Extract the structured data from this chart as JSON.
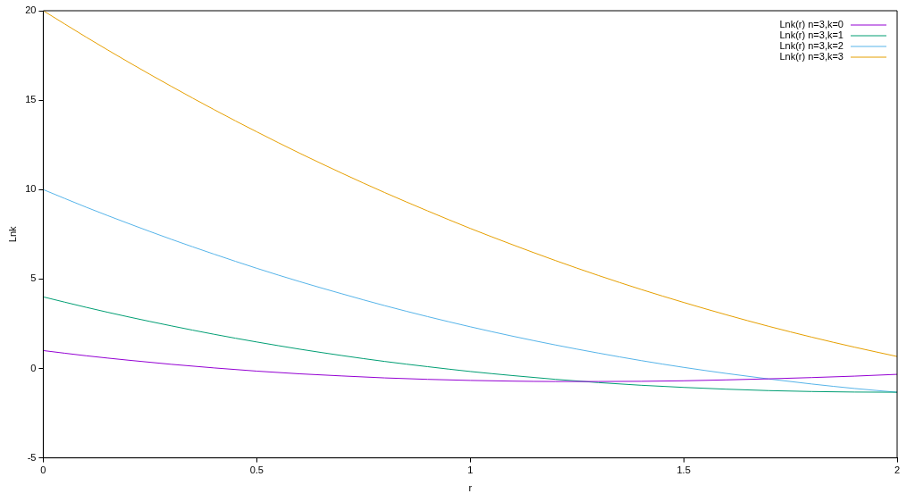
{
  "chart_data": {
    "type": "line",
    "xlabel": "r",
    "ylabel": "Lnk",
    "legend": "top right",
    "grid": false,
    "marker": "none",
    "line_style": "solid",
    "x": [
      0,
      0.1,
      0.2,
      0.3,
      0.4,
      0.5,
      0.6,
      0.7,
      0.8,
      0.9,
      1,
      1.1,
      1.2,
      1.3,
      1.4,
      1.5,
      1.6,
      1.7,
      1.8,
      1.9,
      2
    ],
    "xlim": [
      0,
      2
    ],
    "xticks": [
      0,
      0.5,
      1,
      1.5,
      2
    ],
    "ylim": [
      -5,
      20
    ],
    "yticks": [
      -5,
      0,
      5,
      10,
      15,
      20
    ],
    "series": [
      {
        "name": "Lnk(r) n=3,k=0",
        "color": "#9400d3",
        "values": [
          1,
          0.71,
          0.46,
          0.23,
          0.03,
          -0.15,
          -0.3,
          -0.42,
          -0.53,
          -0.61,
          -0.67,
          -0.71,
          -0.73,
          -0.73,
          -0.72,
          -0.69,
          -0.64,
          -0.58,
          -0.51,
          -0.43,
          -0.33
        ]
      },
      {
        "name": "Lnk(r) n=3,k=1",
        "color": "#009e73",
        "values": [
          4,
          3.42,
          2.88,
          2.38,
          1.91,
          1.48,
          1.08,
          0.72,
          0.39,
          0.1,
          -0.17,
          -0.4,
          -0.61,
          -0.79,
          -0.94,
          -1.06,
          -1.16,
          -1.24,
          -1.29,
          -1.32,
          -1.33
        ]
      },
      {
        "name": "Lnk(r) n=3,k=2",
        "color": "#56b4e9",
        "values": [
          10,
          9.02,
          8.1,
          7.22,
          6.39,
          5.6,
          4.86,
          4.17,
          3.51,
          2.9,
          2.33,
          1.8,
          1.31,
          0.86,
          0.44,
          0.06,
          -0.28,
          -0.59,
          -0.87,
          -1.12,
          -1.33
        ]
      },
      {
        "name": "Lnk(r) n=3,k=3",
        "color": "#e69f00",
        "values": [
          20,
          18.53,
          17.12,
          15.77,
          14.47,
          13.23,
          12.04,
          10.91,
          9.83,
          8.81,
          7.83,
          6.91,
          6.03,
          5.2,
          4.42,
          3.69,
          3.0,
          2.35,
          1.75,
          1.19,
          0.67
        ]
      }
    ]
  }
}
